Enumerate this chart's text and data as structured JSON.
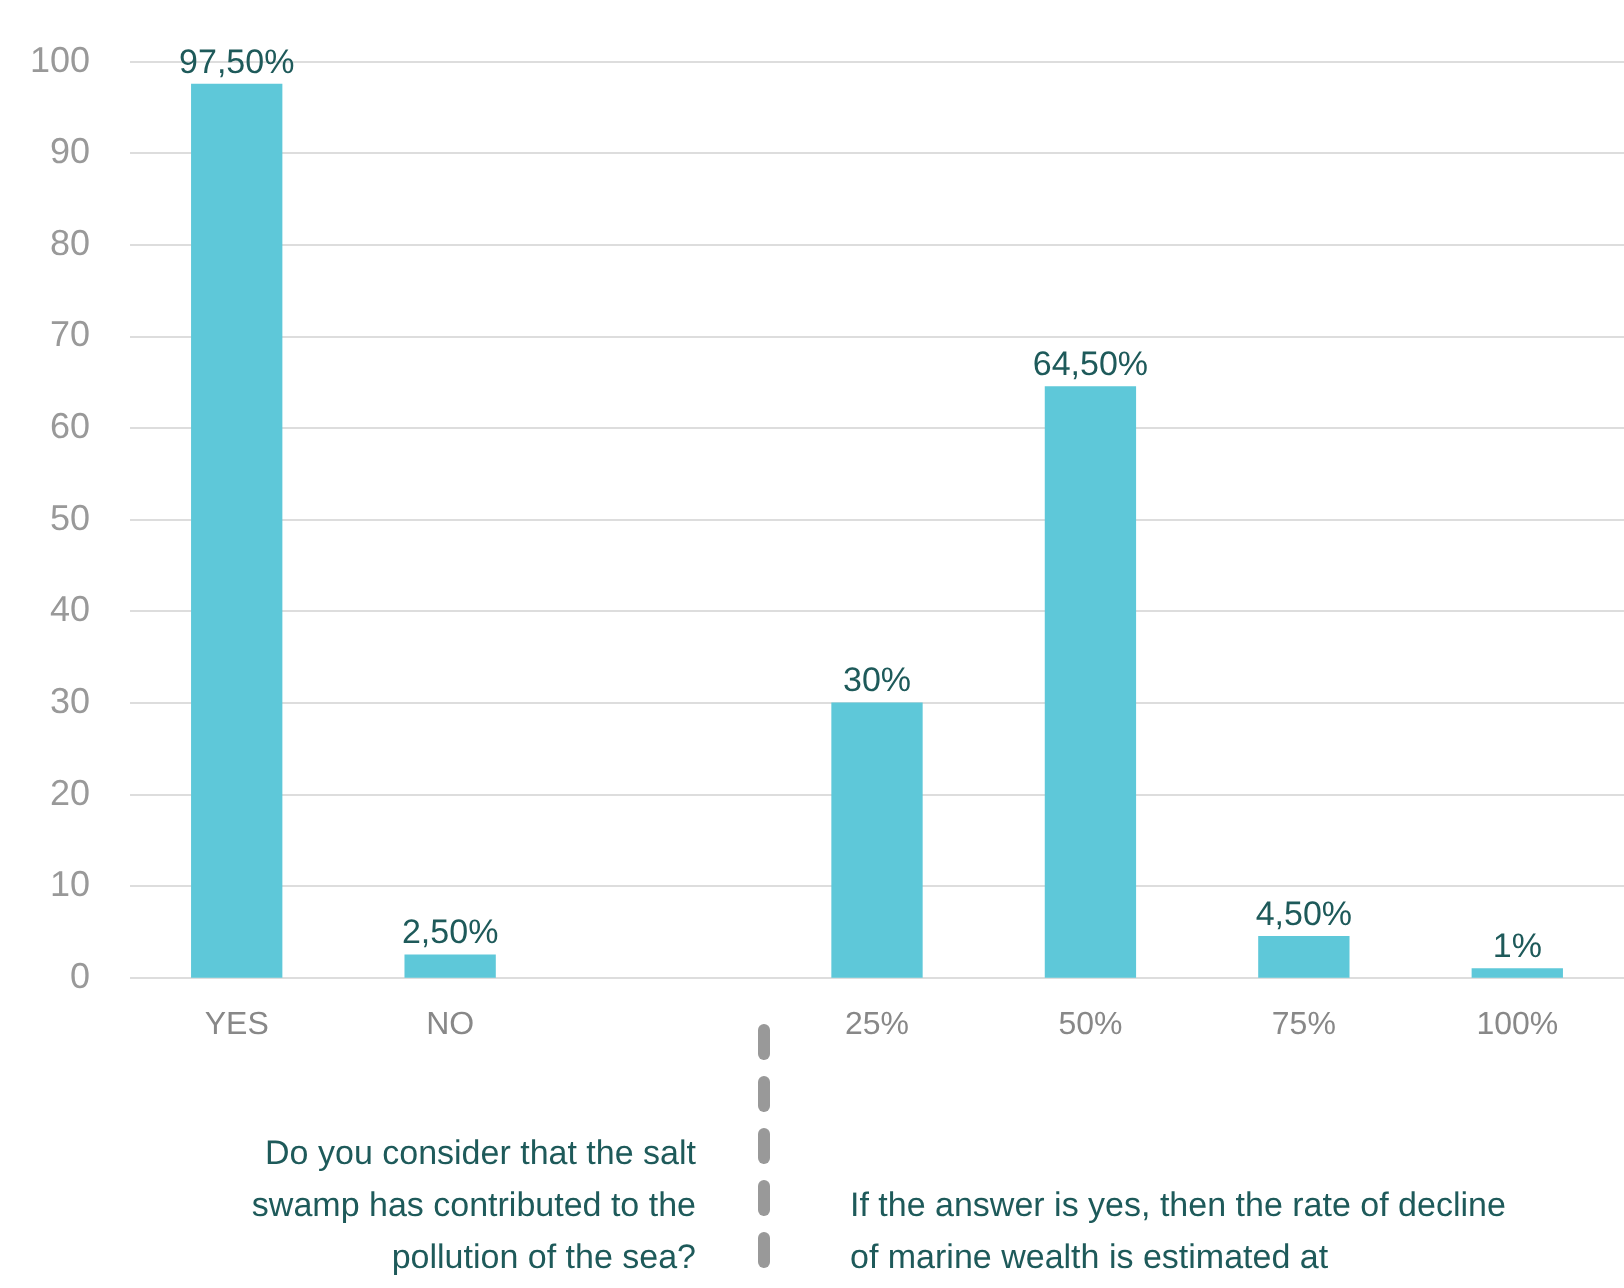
{
  "chart_data": {
    "type": "bar",
    "categories": [
      "YES",
      "NO",
      null,
      "25%",
      "50%",
      "75%",
      "100%"
    ],
    "values": [
      97.5,
      2.5,
      null,
      30,
      64.5,
      4.5,
      1
    ],
    "value_labels": [
      "97,50%",
      "2,50%",
      null,
      "30%",
      "64,50%",
      "4,50%",
      "1%"
    ],
    "color": "#5ec8d9",
    "ylim": [
      0,
      100
    ],
    "yticks": [
      0,
      10,
      20,
      30,
      40,
      50,
      60,
      70,
      80,
      90,
      100
    ],
    "grid": "y",
    "legend": false,
    "annotations": [
      "Do you consider that the salt swamp has contributed to the pollution of the sea?",
      "If the answer is yes, then the rate of decline of marine wealth is estimated at"
    ]
  }
}
